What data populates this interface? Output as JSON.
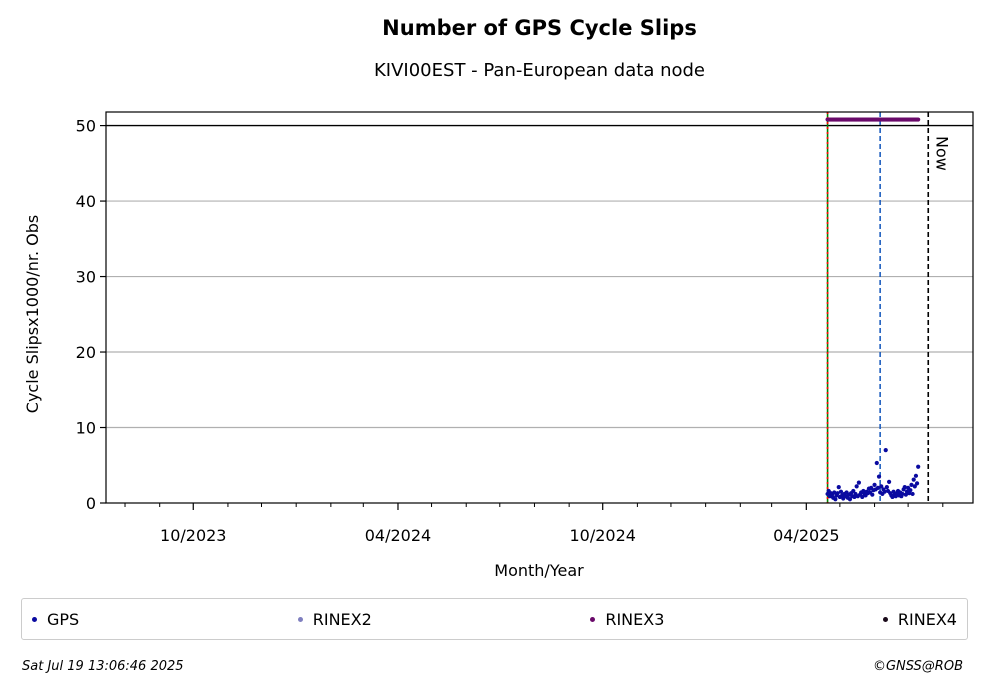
{
  "chart_data": {
    "type": "scatter",
    "title": "Number of GPS Cycle Slips",
    "subtitle": "KIVI00EST - Pan-European data node",
    "xlabel": "Month/Year",
    "ylabel": "Cycle Slipsx1000/nr. Obs",
    "xlim": [
      "2023-07-15",
      "2025-08-28"
    ],
    "ylim": [
      0,
      51.8
    ],
    "yticks": [
      0,
      10,
      20,
      30,
      40,
      50
    ],
    "xticks": [
      {
        "date": "2023-10-01",
        "label": "10/2023"
      },
      {
        "date": "2024-04-01",
        "label": "04/2024"
      },
      {
        "date": "2024-10-01",
        "label": "10/2024"
      },
      {
        "date": "2025-04-01",
        "label": "04/2025"
      }
    ],
    "grid": "horizontal",
    "reference_lines": [
      {
        "name": "limit",
        "type": "hline",
        "y": 50,
        "color": "#000000",
        "style": "solid"
      },
      {
        "name": "start-green",
        "type": "vline",
        "x": "2025-04-20",
        "color": "#008000",
        "style": "solid"
      },
      {
        "name": "start-red",
        "type": "vline",
        "x": "2025-04-20",
        "color": "#ff0000",
        "style": "dotted"
      },
      {
        "name": "event",
        "type": "vline",
        "x": "2025-06-06",
        "color": "#1f5fbf",
        "style": "dashed"
      },
      {
        "name": "now",
        "type": "vline",
        "x": "2025-07-19",
        "color": "#000000",
        "style": "dashed",
        "label": "Now"
      }
    ],
    "series": [
      {
        "name": "GPS",
        "color": "#0a0aa0",
        "points": [
          [
            "2025-04-20",
            1.2
          ],
          [
            "2025-04-21",
            1.6
          ],
          [
            "2025-04-22",
            0.9
          ],
          [
            "2025-04-23",
            1.3
          ],
          [
            "2025-04-24",
            1.1
          ],
          [
            "2025-04-25",
            0.7
          ],
          [
            "2025-04-26",
            1.4
          ],
          [
            "2025-04-27",
            0.5
          ],
          [
            "2025-04-28",
            1.0
          ],
          [
            "2025-04-29",
            1.3
          ],
          [
            "2025-04-30",
            2.1
          ],
          [
            "2025-05-01",
            0.8
          ],
          [
            "2025-05-02",
            1.5
          ],
          [
            "2025-05-03",
            1.0
          ],
          [
            "2025-05-04",
            0.6
          ],
          [
            "2025-05-05",
            1.2
          ],
          [
            "2025-05-06",
            0.9
          ],
          [
            "2025-05-07",
            1.4
          ],
          [
            "2025-05-08",
            0.7
          ],
          [
            "2025-05-09",
            1.1
          ],
          [
            "2025-05-10",
            0.5
          ],
          [
            "2025-05-11",
            1.3
          ],
          [
            "2025-05-12",
            0.9
          ],
          [
            "2025-05-13",
            1.6
          ],
          [
            "2025-05-14",
            0.8
          ],
          [
            "2025-05-15",
            1.2
          ],
          [
            "2025-05-16",
            2.2
          ],
          [
            "2025-05-17",
            0.9
          ],
          [
            "2025-05-18",
            2.7
          ],
          [
            "2025-05-19",
            1.1
          ],
          [
            "2025-05-20",
            1.4
          ],
          [
            "2025-05-21",
            0.8
          ],
          [
            "2025-05-22",
            1.6
          ],
          [
            "2025-05-23",
            1.2
          ],
          [
            "2025-05-24",
            1.0
          ],
          [
            "2025-05-25",
            1.5
          ],
          [
            "2025-05-26",
            1.3
          ],
          [
            "2025-05-27",
            1.9
          ],
          [
            "2025-05-28",
            1.4
          ],
          [
            "2025-05-29",
            2.0
          ],
          [
            "2025-05-30",
            1.1
          ],
          [
            "2025-05-31",
            1.7
          ],
          [
            "2025-06-01",
            2.4
          ],
          [
            "2025-06-02",
            1.8
          ],
          [
            "2025-06-03",
            5.3
          ],
          [
            "2025-06-04",
            2.0
          ],
          [
            "2025-06-05",
            3.5
          ],
          [
            "2025-06-06",
            1.4
          ],
          [
            "2025-06-07",
            2.2
          ],
          [
            "2025-06-08",
            1.2
          ],
          [
            "2025-06-09",
            1.8
          ],
          [
            "2025-06-10",
            1.5
          ],
          [
            "2025-06-11",
            7.0
          ],
          [
            "2025-06-12",
            2.1
          ],
          [
            "2025-06-13",
            1.6
          ],
          [
            "2025-06-14",
            2.8
          ],
          [
            "2025-06-15",
            1.3
          ],
          [
            "2025-06-16",
            1.0
          ],
          [
            "2025-06-17",
            0.8
          ],
          [
            "2025-06-18",
            1.5
          ],
          [
            "2025-06-19",
            1.1
          ],
          [
            "2025-06-20",
            0.9
          ],
          [
            "2025-06-21",
            1.3
          ],
          [
            "2025-06-22",
            1.6
          ],
          [
            "2025-06-23",
            1.0
          ],
          [
            "2025-06-24",
            1.4
          ],
          [
            "2025-06-25",
            0.9
          ],
          [
            "2025-06-26",
            1.2
          ],
          [
            "2025-06-27",
            1.8
          ],
          [
            "2025-06-28",
            2.1
          ],
          [
            "2025-06-29",
            1.1
          ],
          [
            "2025-06-30",
            1.5
          ],
          [
            "2025-07-01",
            2.0
          ],
          [
            "2025-07-02",
            1.3
          ],
          [
            "2025-07-03",
            1.7
          ],
          [
            "2025-07-04",
            2.4
          ],
          [
            "2025-07-05",
            1.2
          ],
          [
            "2025-07-06",
            3.1
          ],
          [
            "2025-07-07",
            2.2
          ],
          [
            "2025-07-08",
            3.6
          ],
          [
            "2025-07-09",
            2.6
          ],
          [
            "2025-07-10",
            4.8
          ]
        ]
      },
      {
        "name": "RINEX2",
        "color": "#7f7fbf",
        "points": []
      },
      {
        "name": "RINEX3",
        "color": "#6a0a6a",
        "points": "constant-50.8-daily-2025-04-20-to-2025-07-10"
      },
      {
        "name": "RINEX4",
        "color": "#1a0a1a",
        "points": []
      }
    ]
  },
  "legend": [
    {
      "label": "GPS",
      "color": "#0a0aa0"
    },
    {
      "label": "RINEX2",
      "color": "#7f7fbf"
    },
    {
      "label": "RINEX3",
      "color": "#6a0a6a"
    },
    {
      "label": "RINEX4",
      "color": "#1a0a1a"
    }
  ],
  "footer": {
    "timestamp": "Sat Jul 19 13:06:46 2025",
    "copyright": "©GNSS@ROB"
  }
}
